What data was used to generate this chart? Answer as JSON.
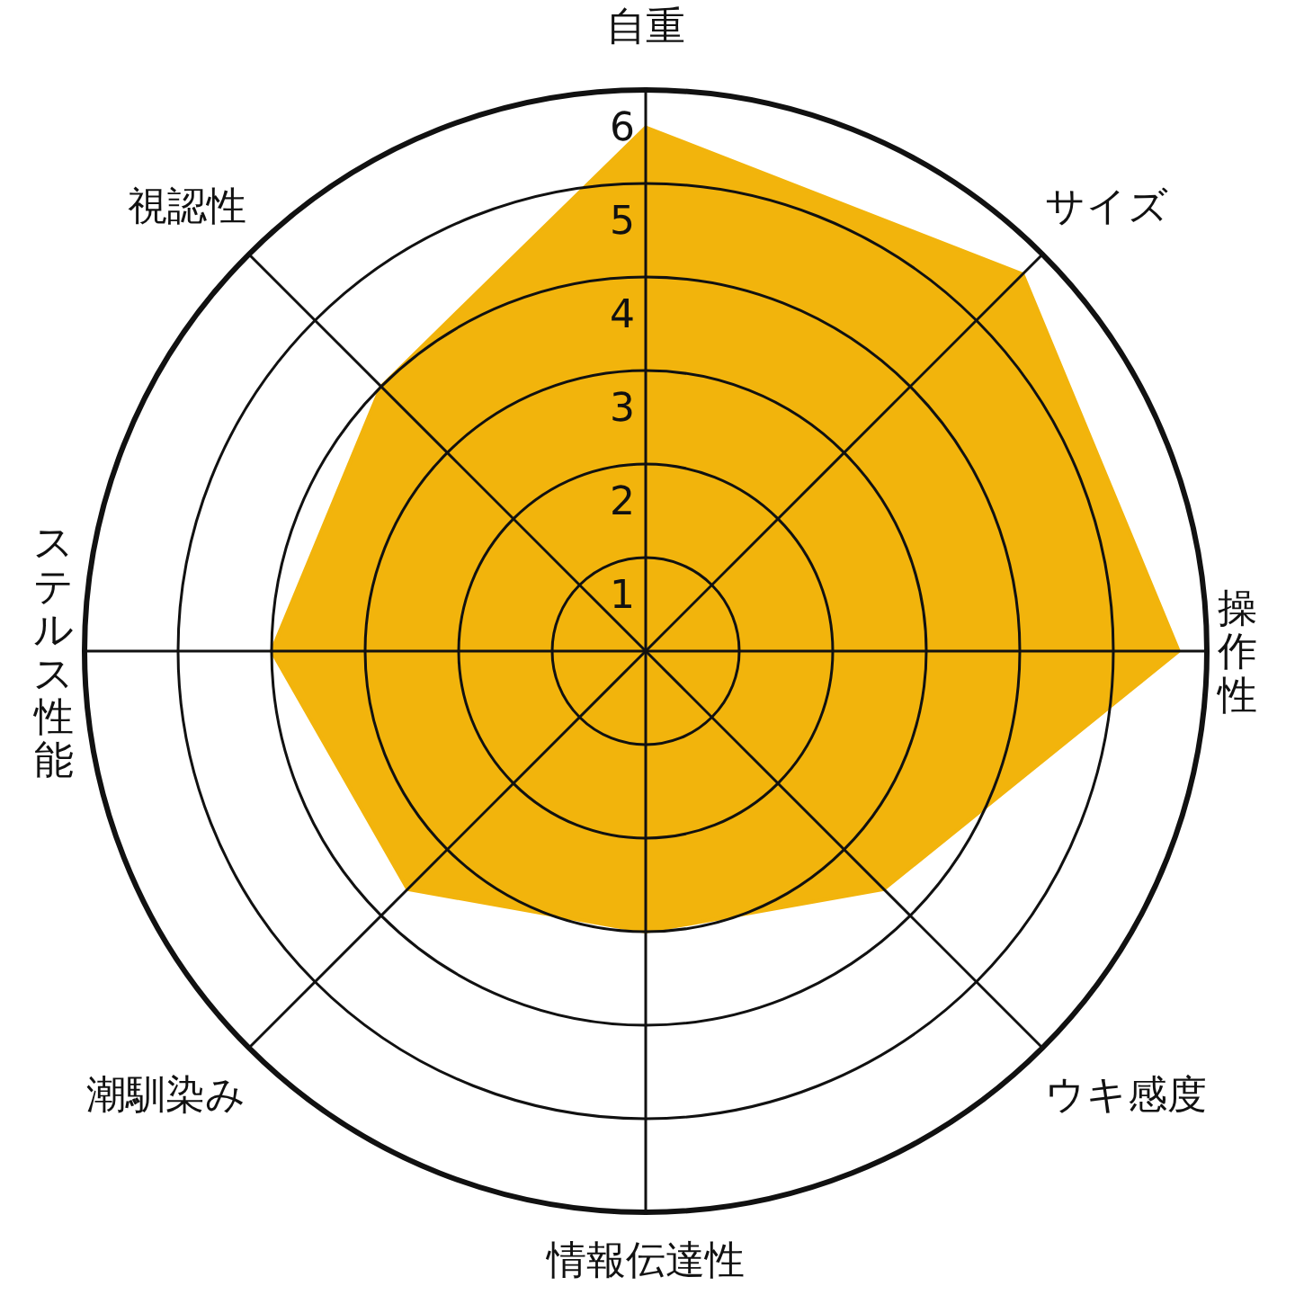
{
  "chart_data": {
    "type": "radar",
    "categories": [
      "自重",
      "サイズ",
      "操作性",
      "ウキ感度",
      "情報伝達性",
      "潮馴染み",
      "ステルス性能",
      "視認性"
    ],
    "series": [
      {
        "color": "#f2b40c",
        "values": [
          5.6,
          5.7,
          5.7,
          3.6,
          3.0,
          3.6,
          4.0,
          4.0
        ]
      }
    ],
    "ylim": [
      0,
      6
    ],
    "yticks": [
      1,
      2,
      3,
      4,
      5,
      6
    ],
    "grid": true
  }
}
